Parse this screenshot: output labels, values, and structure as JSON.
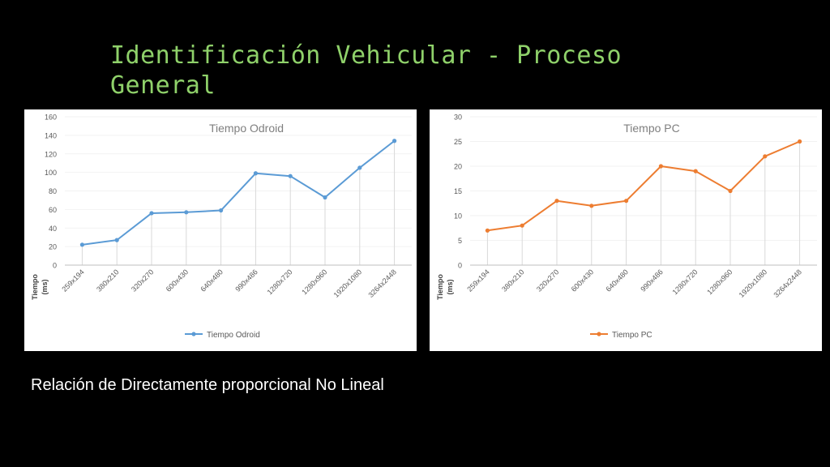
{
  "slide": {
    "title": "Identificación Vehicular - Proceso General",
    "caption": "Relación de Directamente proporcional No Lineal"
  },
  "chart_data": [
    {
      "type": "line",
      "title": "Tiempo Odroid",
      "categories": [
        "259x194",
        "380x210",
        "320x270",
        "600x430",
        "640x480",
        "990x486",
        "1280x720",
        "1280x960",
        "1920x1080",
        "3264x2448"
      ],
      "series": [
        {
          "name": "Tiempo Odroid",
          "values": [
            22,
            27,
            56,
            57,
            59,
            99,
            96,
            73,
            105,
            134
          ],
          "color": "#5b9bd5"
        }
      ],
      "ylabel": "Tiempo (ms)",
      "ylim": [
        0,
        160
      ],
      "yticks": [
        0,
        20,
        40,
        60,
        80,
        100,
        120,
        140,
        160
      ],
      "legend": "bottom",
      "vertical_grid": true
    },
    {
      "type": "line",
      "title": "Tiempo PC",
      "categories": [
        "259x194",
        "380x210",
        "320x270",
        "600x430",
        "640x480",
        "990x486",
        "1280x720",
        "1280x960",
        "1920x1080",
        "3264x2448"
      ],
      "series": [
        {
          "name": "Tiempo PC",
          "values": [
            7,
            8,
            13,
            12,
            13,
            20,
            19,
            15,
            22,
            25
          ],
          "color": "#ed7d31"
        }
      ],
      "ylabel": "Tiempo (ms)",
      "ylim": [
        0,
        30
      ],
      "yticks": [
        0,
        5,
        10,
        15,
        20,
        25,
        30
      ],
      "legend": "bottom",
      "vertical_grid": true
    }
  ]
}
